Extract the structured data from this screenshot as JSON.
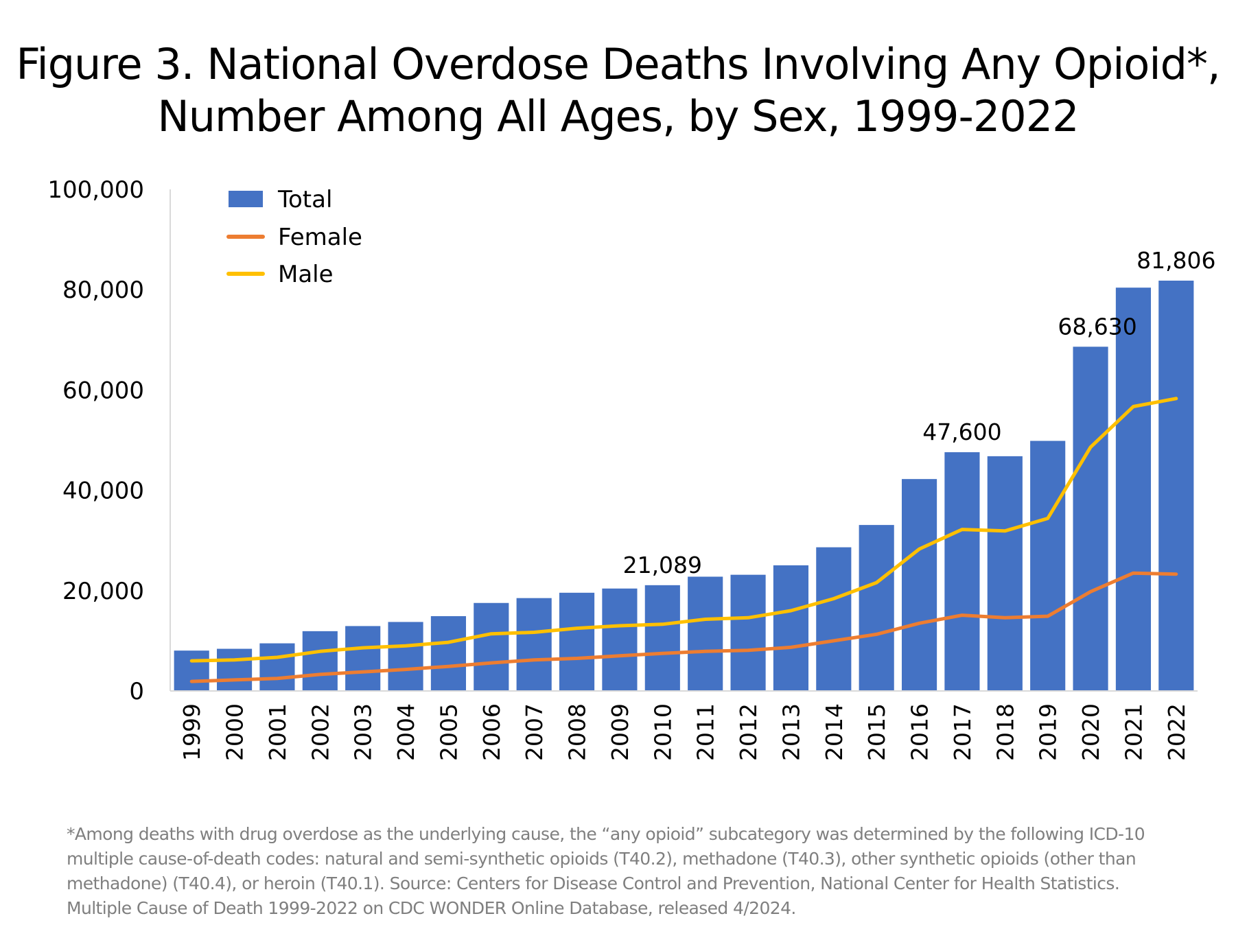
{
  "title": {
    "line1": "Figure 3. National Overdose Deaths Involving Any Opioid*,",
    "line2": "Number Among All Ages, by Sex, 1999-2022"
  },
  "footnote": {
    "lines": [
      "*Among deaths with drug overdose as the underlying cause, the “any opioid” subcategory was determined by the following ICD-10",
      "multiple cause-of-death codes: natural and semi-synthetic opioids (T40.2), methadone (T40.3), other synthetic opioids (other than",
      "methadone) (T40.4), or heroin (T40.1). Source: Centers for Disease Control and Prevention, National Center for Health Statistics.",
      "Multiple Cause of Death 1999-2022 on CDC WONDER Online Database, released 4/2024."
    ]
  },
  "colors": {
    "total": "#4472c4",
    "female": "#ed7d31",
    "male": "#ffc000",
    "axis": "#d9d9d9"
  },
  "chart_data": {
    "type": "bar",
    "title": "Figure 3. National Overdose Deaths Involving Any Opioid*, Number Among All Ages, by Sex, 1999-2022",
    "xlabel": "",
    "ylabel": "",
    "ylim": [
      0,
      100000
    ],
    "yticks": [
      0,
      20000,
      40000,
      60000,
      80000,
      100000
    ],
    "ytick_labels": [
      "0",
      "20,000",
      "40,000",
      "60,000",
      "80,000",
      "100,000"
    ],
    "grid": false,
    "legend": {
      "position": "top-left",
      "entries": [
        "Total",
        "Female",
        "Male"
      ]
    },
    "categories": [
      "1999",
      "2000",
      "2001",
      "2002",
      "2003",
      "2004",
      "2005",
      "2006",
      "2007",
      "2008",
      "2009",
      "2010",
      "2011",
      "2012",
      "2013",
      "2014",
      "2015",
      "2016",
      "2017",
      "2018",
      "2019",
      "2020",
      "2021",
      "2022"
    ],
    "series": [
      {
        "name": "Total",
        "type": "bar",
        "values": [
          8050,
          8407,
          9496,
          11920,
          12940,
          13756,
          14918,
          17545,
          18516,
          19582,
          20422,
          21089,
          22784,
          23166,
          25052,
          28647,
          33091,
          42249,
          47600,
          46802,
          49860,
          68630,
          80411,
          81806
        ]
      },
      {
        "name": "Female",
        "type": "line",
        "values": [
          1900,
          2200,
          2500,
          3300,
          3800,
          4300,
          4900,
          5600,
          6200,
          6500,
          7000,
          7500,
          7900,
          8100,
          8700,
          10000,
          11300,
          13500,
          15100,
          14600,
          14900,
          19800,
          23500,
          23300
        ]
      },
      {
        "name": "Male",
        "type": "line",
        "values": [
          6000,
          6200,
          6700,
          7900,
          8600,
          9000,
          9700,
          11400,
          11700,
          12500,
          13000,
          13300,
          14300,
          14600,
          16000,
          18400,
          21600,
          28300,
          32200,
          31900,
          34400,
          48600,
          56700,
          58300
        ]
      }
    ],
    "annotations": [
      {
        "category": "2010",
        "text": "21,089"
      },
      {
        "category": "2017",
        "text": "47,600"
      },
      {
        "category": "2020",
        "text": "68,630"
      },
      {
        "category": "2022",
        "text": "81,806"
      }
    ]
  }
}
